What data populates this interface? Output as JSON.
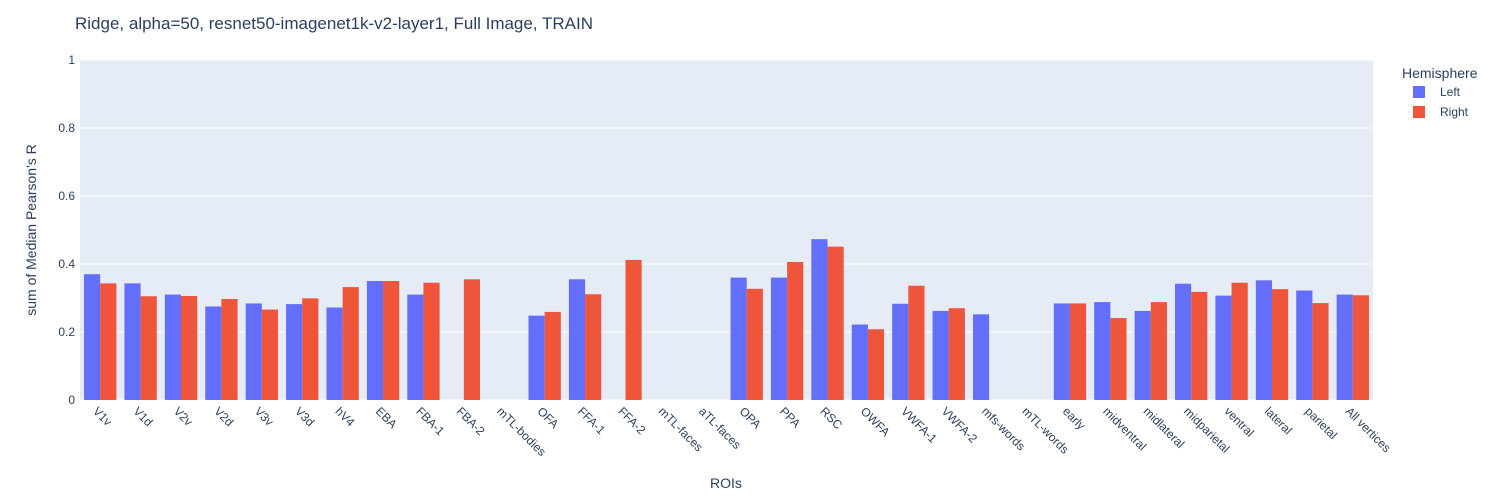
{
  "chart_data": {
    "type": "bar",
    "title": "Ridge, alpha=50, resnet50-imagenet1k-v2-layer1, Full Image, TRAIN",
    "xlabel": "ROIs",
    "ylabel": "sum of Median Pearson's R",
    "ylim": [
      0,
      1
    ],
    "yticks": [
      "0",
      "0.2",
      "0.4",
      "0.6",
      "0.8",
      "1"
    ],
    "grid": true,
    "legend": {
      "title": "Hemisphere",
      "placement": "top-right"
    },
    "categories": [
      "V1v",
      "V1d",
      "V2v",
      "V2d",
      "V3v",
      "V3d",
      "hV4",
      "EBA",
      "FBA-1",
      "FBA-2",
      "mTL-bodies",
      "OFA",
      "FFA-1",
      "FFA-2",
      "mTL-faces",
      "aTL-faces",
      "OPA",
      "PPA",
      "RSC",
      "OWFA",
      "VWFA-1",
      "VWFA-2",
      "mfs-words",
      "mTL-words",
      "early",
      "midventral",
      "midlateral",
      "midparietal",
      "ventral",
      "lateral",
      "parietal",
      "All vertices"
    ],
    "series": [
      {
        "name": "Left",
        "color": "#636efa",
        "values": [
          0.37,
          0.343,
          0.31,
          0.275,
          0.284,
          0.282,
          0.272,
          0.35,
          0.31,
          null,
          null,
          0.248,
          0.355,
          null,
          null,
          null,
          0.36,
          0.36,
          0.473,
          0.222,
          0.283,
          0.262,
          0.252,
          null,
          0.284,
          0.288,
          0.262,
          0.342,
          0.307,
          0.352,
          0.322,
          0.31
        ]
      },
      {
        "name": "Right",
        "color": "#ef553b",
        "values": [
          0.343,
          0.305,
          0.306,
          0.297,
          0.266,
          0.299,
          0.332,
          0.35,
          0.345,
          0.355,
          null,
          0.259,
          0.311,
          0.412,
          null,
          null,
          0.327,
          0.406,
          0.451,
          0.208,
          0.336,
          0.27,
          null,
          null,
          0.284,
          0.241,
          0.288,
          0.318,
          0.345,
          0.326,
          0.285,
          0.308
        ]
      }
    ]
  }
}
